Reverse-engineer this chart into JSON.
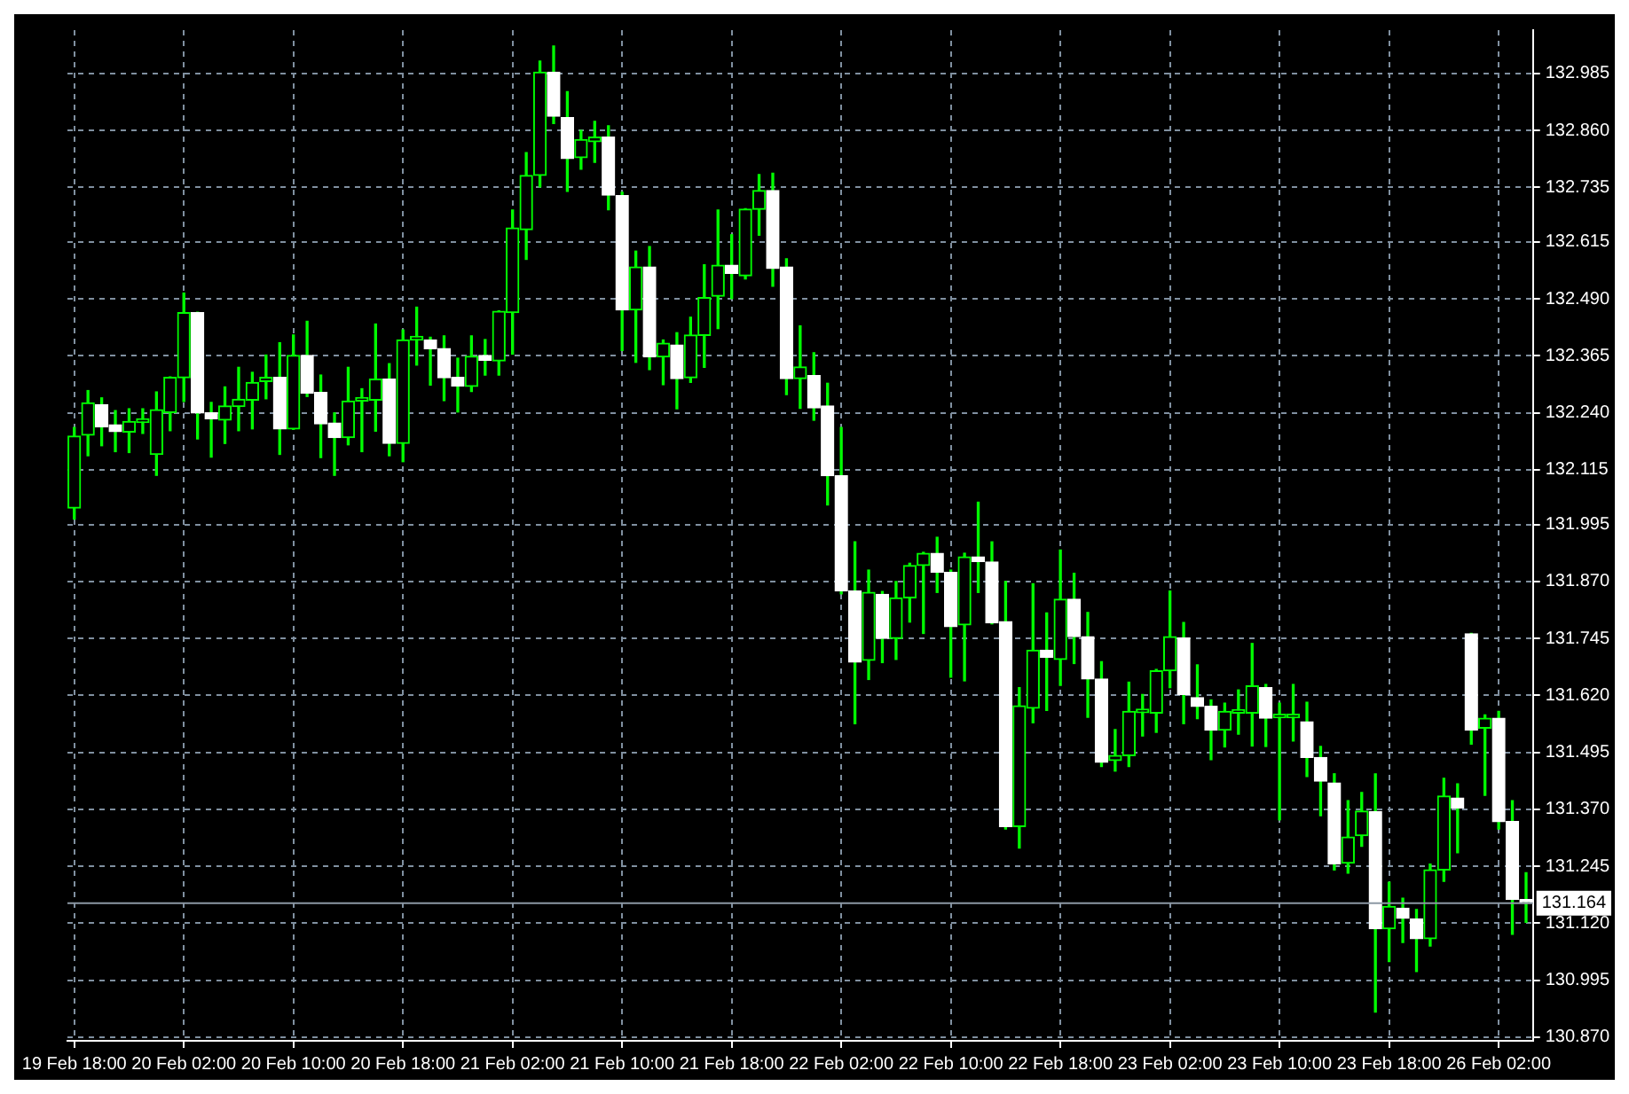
{
  "chart_data": {
    "type": "candlestick",
    "categories": [
      "19 Feb 18:00",
      null,
      null,
      null,
      null,
      null,
      null,
      null,
      "20 Feb 02:00",
      null,
      null,
      null,
      null,
      null,
      null,
      null,
      "20 Feb 10:00",
      null,
      null,
      null,
      null,
      null,
      null,
      null,
      "20 Feb 18:00",
      null,
      null,
      null,
      null,
      null,
      null,
      null,
      "21 Feb 02:00",
      null,
      null,
      null,
      null,
      null,
      null,
      null,
      "21 Feb 10:00",
      null,
      null,
      null,
      null,
      null,
      null,
      null,
      "21 Feb 18:00",
      null,
      null,
      null,
      null,
      null,
      null,
      null,
      "22 Feb 02:00",
      null,
      null,
      null,
      null,
      null,
      null,
      null,
      "22 Feb 10:00",
      null,
      null,
      null,
      null,
      null,
      null,
      null,
      "22 Feb 18:00",
      null,
      null,
      null,
      null,
      null,
      null,
      null,
      "23 Feb 02:00",
      null,
      null,
      null,
      null,
      null,
      null,
      null,
      "23 Feb 10:00",
      null,
      null,
      null,
      null,
      null,
      null,
      null,
      "23 Feb 18:00",
      null,
      null,
      null,
      null,
      null,
      null,
      null,
      "26 Feb 02:00",
      null,
      null
    ],
    "ohlc": [
      [
        132.031,
        132.208,
        132.007,
        132.189
      ],
      [
        132.191,
        132.289,
        132.146,
        132.262
      ],
      [
        132.258,
        132.273,
        132.168,
        132.209
      ],
      [
        132.214,
        132.245,
        132.155,
        132.199
      ],
      [
        132.198,
        132.249,
        132.153,
        132.221
      ],
      [
        132.219,
        132.249,
        132.195,
        132.22
      ],
      [
        132.149,
        132.286,
        132.103,
        132.247
      ],
      [
        132.241,
        132.319,
        132.201,
        132.318
      ],
      [
        132.317,
        132.503,
        132.265,
        132.46
      ],
      [
        132.46,
        132.461,
        132.183,
        132.24
      ],
      [
        132.24,
        132.263,
        132.143,
        132.227
      ],
      [
        132.224,
        132.297,
        132.173,
        132.255
      ],
      [
        132.254,
        132.34,
        132.201,
        132.27
      ],
      [
        132.268,
        132.329,
        132.205,
        132.307
      ],
      [
        132.309,
        132.367,
        132.271,
        132.318
      ],
      [
        132.318,
        132.394,
        132.149,
        132.205
      ],
      [
        132.205,
        132.411,
        132.204,
        132.366
      ],
      [
        132.366,
        132.441,
        132.276,
        132.283
      ],
      [
        132.285,
        132.323,
        132.142,
        132.216
      ],
      [
        132.218,
        132.24,
        132.103,
        132.186
      ],
      [
        132.186,
        132.34,
        132.17,
        132.266
      ],
      [
        132.266,
        132.293,
        132.155,
        132.267
      ],
      [
        132.268,
        132.435,
        132.2,
        132.314
      ],
      [
        132.314,
        132.348,
        132.146,
        132.173
      ],
      [
        132.173,
        132.422,
        132.133,
        132.4
      ],
      [
        132.4,
        132.472,
        132.345,
        132.401
      ],
      [
        132.4,
        132.406,
        132.301,
        132.381
      ],
      [
        132.381,
        132.409,
        132.267,
        132.317
      ],
      [
        132.318,
        132.36,
        132.242,
        132.299
      ],
      [
        132.298,
        132.409,
        132.287,
        132.364
      ],
      [
        132.366,
        132.401,
        132.323,
        132.355
      ],
      [
        132.354,
        132.464,
        132.323,
        132.463
      ],
      [
        132.46,
        132.685,
        132.369,
        132.646
      ],
      [
        132.642,
        132.811,
        132.577,
        132.761
      ],
      [
        132.761,
        133.012,
        132.736,
        132.988
      ],
      [
        132.988,
        133.045,
        132.875,
        132.891
      ],
      [
        132.888,
        132.945,
        132.726,
        132.798
      ],
      [
        132.8,
        132.86,
        132.775,
        132.84
      ],
      [
        132.835,
        132.88,
        132.79,
        132.845
      ],
      [
        132.845,
        132.87,
        132.686,
        132.718
      ],
      [
        132.717,
        132.724,
        132.377,
        132.466
      ],
      [
        132.466,
        132.595,
        132.351,
        132.56
      ],
      [
        132.56,
        132.605,
        132.335,
        132.363
      ],
      [
        132.363,
        132.4,
        132.302,
        132.393
      ],
      [
        132.389,
        132.416,
        132.249,
        132.315
      ],
      [
        132.317,
        132.45,
        132.307,
        132.411
      ],
      [
        132.41,
        132.565,
        132.34,
        132.493
      ],
      [
        132.496,
        132.685,
        132.425,
        132.564
      ],
      [
        132.564,
        132.631,
        132.491,
        132.546
      ],
      [
        132.541,
        132.688,
        132.534,
        132.687
      ],
      [
        132.687,
        132.763,
        132.63,
        132.728
      ],
      [
        132.728,
        132.766,
        132.518,
        132.557
      ],
      [
        132.56,
        132.578,
        132.28,
        132.315
      ],
      [
        132.315,
        132.431,
        132.25,
        132.341
      ],
      [
        132.322,
        132.372,
        132.224,
        132.251
      ],
      [
        132.255,
        132.305,
        132.038,
        132.102
      ],
      [
        132.102,
        132.208,
        131.843,
        131.849
      ],
      [
        131.849,
        131.957,
        131.558,
        131.693
      ],
      [
        131.697,
        131.895,
        131.655,
        131.846
      ],
      [
        131.842,
        131.848,
        131.692,
        131.745
      ],
      [
        131.745,
        131.87,
        131.699,
        131.834
      ],
      [
        131.834,
        131.91,
        131.781,
        131.905
      ],
      [
        131.905,
        131.934,
        131.756,
        131.932
      ],
      [
        131.932,
        131.967,
        131.846,
        131.89
      ],
      [
        131.89,
        131.895,
        131.66,
        131.771
      ],
      [
        131.775,
        131.932,
        131.652,
        131.924
      ],
      [
        131.924,
        132.044,
        131.846,
        131.914
      ],
      [
        131.913,
        131.957,
        131.777,
        131.779
      ],
      [
        131.782,
        131.87,
        131.327,
        131.332
      ],
      [
        131.332,
        131.637,
        131.285,
        131.597
      ],
      [
        131.592,
        131.865,
        131.56,
        131.719
      ],
      [
        131.719,
        131.801,
        131.587,
        131.704
      ],
      [
        131.699,
        131.939,
        131.642,
        131.831
      ],
      [
        131.831,
        131.888,
        131.69,
        131.749
      ],
      [
        131.749,
        131.802,
        131.572,
        131.656
      ],
      [
        131.656,
        131.694,
        131.464,
        131.473
      ],
      [
        131.477,
        131.545,
        131.454,
        131.488
      ],
      [
        131.488,
        131.649,
        131.464,
        131.585
      ],
      [
        131.582,
        131.622,
        131.531,
        131.583
      ],
      [
        131.581,
        131.677,
        131.539,
        131.674
      ],
      [
        131.674,
        131.849,
        131.637,
        131.749
      ],
      [
        131.746,
        131.78,
        131.558,
        131.622
      ],
      [
        131.615,
        131.687,
        131.569,
        131.596
      ],
      [
        131.596,
        131.61,
        131.479,
        131.544
      ],
      [
        131.544,
        131.603,
        131.507,
        131.585
      ],
      [
        131.581,
        131.632,
        131.535,
        131.582
      ],
      [
        131.581,
        131.734,
        131.509,
        131.641
      ],
      [
        131.637,
        131.644,
        131.508,
        131.57
      ],
      [
        131.571,
        131.603,
        131.347,
        131.572
      ],
      [
        131.571,
        131.644,
        131.52,
        131.572
      ],
      [
        131.562,
        131.605,
        131.442,
        131.484
      ],
      [
        131.484,
        131.508,
        131.356,
        131.432
      ],
      [
        131.428,
        131.448,
        131.237,
        131.25
      ],
      [
        131.252,
        131.389,
        131.23,
        131.309
      ],
      [
        131.312,
        131.407,
        131.289,
        131.366
      ],
      [
        131.365,
        131.448,
        130.925,
        131.108
      ],
      [
        131.108,
        131.21,
        131.036,
        131.157
      ],
      [
        131.153,
        131.175,
        131.078,
        131.131
      ],
      [
        131.129,
        131.15,
        131.014,
        131.086
      ],
      [
        131.086,
        131.25,
        131.07,
        131.237
      ],
      [
        131.237,
        131.438,
        131.212,
        131.399
      ],
      [
        131.395,
        131.426,
        131.275,
        131.373
      ],
      [
        131.755,
        131.756,
        131.513,
        131.544
      ],
      [
        131.548,
        131.577,
        131.401,
        131.57
      ],
      [
        131.57,
        131.585,
        131.327,
        131.343
      ],
      [
        131.343,
        131.389,
        131.096,
        131.172
      ],
      [
        131.17,
        131.231,
        131.122,
        131.164
      ]
    ],
    "color": "#00ff00",
    "colors": [
      "#00ff00",
      "#00ff00",
      "#ffffff",
      "#ffffff",
      "#00ff00",
      "#00ff00",
      "#00ff00",
      "#00ff00",
      "#00ff00",
      "#ffffff",
      "#ffffff",
      "#00ff00",
      "#00ff00",
      "#00ff00",
      "#00ff00",
      "#ffffff",
      "#00ff00",
      "#ffffff",
      "#ffffff",
      "#ffffff",
      "#00ff00",
      "#00ff00",
      "#00ff00",
      "#ffffff",
      "#00ff00",
      "#00ff00",
      "#ffffff",
      "#ffffff",
      "#ffffff",
      "#00ff00",
      "#ffffff",
      "#00ff00",
      "#00ff00",
      "#00ff00",
      "#00ff00",
      "#ffffff",
      "#ffffff",
      "#00ff00",
      "#00ff00",
      "#ffffff",
      "#ffffff",
      "#00ff00",
      "#ffffff",
      "#00ff00",
      "#ffffff",
      "#00ff00",
      "#00ff00",
      "#00ff00",
      "#ffffff",
      "#00ff00",
      "#00ff00",
      "#ffffff",
      "#ffffff",
      "#00ff00",
      "#ffffff",
      "#ffffff",
      "#ffffff",
      "#ffffff",
      "#00ff00",
      "#ffffff",
      "#00ff00",
      "#00ff00",
      "#00ff00",
      "#ffffff",
      "#ffffff",
      "#00ff00",
      "#ffffff",
      "#ffffff",
      "#ffffff",
      "#00ff00",
      "#00ff00",
      "#ffffff",
      "#00ff00",
      "#ffffff",
      "#ffffff",
      "#ffffff",
      "#00ff00",
      "#00ff00",
      "#00ff00",
      "#00ff00",
      "#00ff00",
      "#ffffff",
      "#ffffff",
      "#ffffff",
      "#00ff00",
      "#00ff00",
      "#00ff00",
      "#ffffff",
      "#00ff00",
      "#00ff00",
      "#ffffff",
      "#ffffff",
      "#ffffff",
      "#00ff00",
      "#00ff00",
      "#ffffff",
      "#00ff00",
      "#ffffff",
      "#ffffff",
      "#00ff00",
      "#00ff00",
      "#ffffff",
      "#ffffff",
      "#00ff00",
      "#ffffff",
      "#ffffff",
      "#ffffff"
    ],
    "ylim": [
      130.862,
      133.08
    ],
    "yticks": [
      {
        "value": 130.87,
        "label": "130.870"
      },
      130.995,
      {
        "value": 131.12,
        "label": "131.120"
      },
      131.245,
      {
        "value": 131.37,
        "label": "131.370"
      },
      131.495,
      {
        "value": 131.62,
        "label": "131.620"
      },
      131.745,
      {
        "value": 131.87,
        "label": "131.870"
      },
      131.995,
      132.115,
      {
        "value": 132.24,
        "label": "132.240"
      },
      132.365,
      {
        "value": 132.49,
        "label": "132.490"
      },
      132.615,
      132.735,
      {
        "value": 132.86,
        "label": "132.860"
      },
      132.985
    ],
    "grid": true,
    "ref_lines": [
      {
        "axis": "y",
        "value": 131.164,
        "label": "131.164",
        "color": "#8c98a4"
      }
    ]
  }
}
